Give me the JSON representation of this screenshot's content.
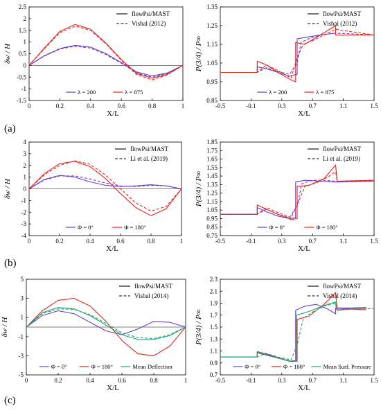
{
  "panel_labels": [
    "(a)",
    "(b)",
    "(c)"
  ],
  "chart_data": [
    {
      "type": "line",
      "panel": "a-left",
      "xlabel": "X/L",
      "ylabel": "δw / H",
      "xlim": [
        0,
        1
      ],
      "ylim": [
        -1.5,
        2.5
      ],
      "xticks": [
        "0",
        "0.2",
        "0.4",
        "0.6",
        "0.8",
        "1"
      ],
      "yticks": [
        "-1.5",
        "-1",
        "-0.5",
        "0",
        "0.5",
        "1",
        "1.5",
        "2",
        "2.5"
      ],
      "legend_top": [
        "flowPsi/MAST",
        "Visbal (2012)"
      ],
      "legend_bottom": [
        "λ = 200",
        "λ = 875"
      ],
      "grid": false,
      "series": [
        {
          "name": "λ = 200",
          "source": "flowPsi/MAST",
          "color": "#6a3dc7",
          "dash": false,
          "x": [
            0,
            0.1,
            0.2,
            0.3,
            0.4,
            0.5,
            0.6,
            0.7,
            0.8,
            0.9,
            1
          ],
          "y": [
            0,
            0.42,
            0.72,
            0.86,
            0.78,
            0.5,
            0.12,
            -0.28,
            -0.45,
            -0.32,
            0
          ]
        },
        {
          "name": "λ = 200",
          "source": "Visbal (2012)",
          "color": "#6a3dc7",
          "dash": true,
          "x": [
            0,
            0.1,
            0.2,
            0.3,
            0.4,
            0.5,
            0.6,
            0.7,
            0.8,
            0.9,
            1
          ],
          "y": [
            0,
            0.4,
            0.7,
            0.82,
            0.74,
            0.46,
            0.09,
            -0.32,
            -0.5,
            -0.35,
            0
          ]
        },
        {
          "name": "λ = 875",
          "source": "flowPsi/MAST",
          "color": "#e8231c",
          "dash": false,
          "x": [
            0,
            0.1,
            0.2,
            0.3,
            0.4,
            0.5,
            0.6,
            0.7,
            0.8,
            0.9,
            1
          ],
          "y": [
            0,
            0.75,
            1.45,
            1.75,
            1.55,
            0.95,
            0.25,
            -0.35,
            -0.55,
            -0.38,
            0
          ]
        },
        {
          "name": "λ = 875",
          "source": "Visbal (2012)",
          "color": "#e8231c",
          "dash": true,
          "x": [
            0,
            0.1,
            0.2,
            0.3,
            0.4,
            0.5,
            0.6,
            0.7,
            0.8,
            0.9,
            1
          ],
          "y": [
            0,
            0.72,
            1.4,
            1.68,
            1.5,
            0.92,
            0.22,
            -0.4,
            -0.62,
            -0.4,
            0
          ]
        }
      ]
    },
    {
      "type": "line",
      "panel": "a-right",
      "xlabel": "X/L",
      "ylabel": "P(3/4) / P∞",
      "xlim": [
        -0.5,
        1.5
      ],
      "ylim": [
        0.85,
        1.35
      ],
      "xticks": [
        "-0.5",
        "-0.1",
        "0.3",
        "0.7",
        "1.1",
        "1.5"
      ],
      "yticks": [
        "0.85",
        "0.95",
        "1.05",
        "1.15",
        "1.25",
        "1.35"
      ],
      "legend_top": [
        "flowPsi/MAST",
        "Visbal (2012)"
      ],
      "legend_bottom": [
        "λ = 200",
        "λ = 875"
      ],
      "grid": false,
      "series": [
        {
          "name": "λ = 200",
          "source": "flowPsi/MAST",
          "color": "#6a3dc7",
          "dash": false,
          "x": [
            -0.5,
            -0.02,
            -0.02,
            0.1,
            0.25,
            0.4,
            0.5,
            0.5,
            0.65,
            0.8,
            1.0,
            1.0,
            1.5
          ],
          "y": [
            1.0,
            1.0,
            1.03,
            1.02,
            1.0,
            0.98,
            0.99,
            1.18,
            1.19,
            1.2,
            1.21,
            1.2,
            1.2
          ]
        },
        {
          "name": "λ = 200",
          "source": "Visbal (2012)",
          "color": "#6a3dc7",
          "dash": true,
          "x": [
            -0.5,
            -0.02,
            0.1,
            0.25,
            0.4,
            0.5,
            0.55,
            0.65,
            0.8,
            1.0,
            1.5
          ],
          "y": [
            1.0,
            1.0,
            1.025,
            1.005,
            0.99,
            1.05,
            1.16,
            1.18,
            1.2,
            1.21,
            1.2
          ]
        },
        {
          "name": "λ = 875",
          "source": "flowPsi/MAST",
          "color": "#e8231c",
          "dash": false,
          "x": [
            -0.5,
            -0.02,
            -0.02,
            0.1,
            0.25,
            0.42,
            0.48,
            0.48,
            0.6,
            0.8,
            1.0,
            1.0,
            1.5
          ],
          "y": [
            1.0,
            1.0,
            1.06,
            1.04,
            1.0,
            0.96,
            0.95,
            1.16,
            1.15,
            1.2,
            1.25,
            1.2,
            1.2
          ]
        },
        {
          "name": "λ = 875",
          "source": "Visbal (2012)",
          "color": "#e8231c",
          "dash": true,
          "x": [
            -0.5,
            -0.02,
            0.1,
            0.25,
            0.42,
            0.5,
            0.58,
            0.7,
            0.85,
            1.0,
            1.5
          ],
          "y": [
            1.0,
            1.0,
            1.04,
            1.01,
            0.97,
            1.08,
            1.15,
            1.17,
            1.2,
            1.23,
            1.2
          ]
        }
      ]
    },
    {
      "type": "line",
      "panel": "b-left",
      "xlabel": "X/L",
      "ylabel": "δw / H",
      "xlim": [
        0,
        1
      ],
      "ylim": [
        -4,
        4
      ],
      "xticks": [
        "0",
        "0.2",
        "0.4",
        "0.6",
        "0.8",
        "1"
      ],
      "yticks": [
        "-4",
        "-3",
        "-2",
        "-1",
        "0",
        "1",
        "2",
        "3",
        "4"
      ],
      "legend_top": [
        "flowPsi/MAST",
        "Li et al. (2019)"
      ],
      "legend_bottom": [
        "Φ = 0°",
        "Φ = 180°"
      ],
      "grid": false,
      "series": [
        {
          "name": "Φ = 0°",
          "source": "flowPsi/MAST",
          "color": "#6a3dc7",
          "dash": false,
          "x": [
            0,
            0.1,
            0.2,
            0.3,
            0.4,
            0.5,
            0.6,
            0.7,
            0.8,
            0.9,
            1
          ],
          "y": [
            0,
            0.8,
            1.15,
            1.0,
            0.6,
            0.3,
            0.2,
            0.25,
            0.35,
            0.25,
            0
          ]
        },
        {
          "name": "Φ = 0°",
          "source": "Li et al. (2019)",
          "color": "#6a3dc7",
          "dash": true,
          "x": [
            0,
            0.1,
            0.2,
            0.3,
            0.4,
            0.5,
            0.6,
            0.7,
            0.8,
            0.9,
            1
          ],
          "y": [
            0,
            0.75,
            1.1,
            1.1,
            0.85,
            0.5,
            0.25,
            0.2,
            0.3,
            0.25,
            0
          ]
        },
        {
          "name": "Φ = 180°",
          "source": "flowPsi/MAST",
          "color": "#e8231c",
          "dash": false,
          "x": [
            0,
            0.1,
            0.2,
            0.3,
            0.4,
            0.5,
            0.6,
            0.7,
            0.8,
            0.9,
            1
          ],
          "y": [
            0,
            1.3,
            2.15,
            2.35,
            1.9,
            0.9,
            -0.4,
            -1.6,
            -2.3,
            -1.7,
            0
          ]
        },
        {
          "name": "Φ = 180°",
          "source": "Li et al. (2019)",
          "color": "#e8231c",
          "dash": true,
          "x": [
            0,
            0.1,
            0.2,
            0.3,
            0.4,
            0.5,
            0.6,
            0.7,
            0.8,
            0.9,
            1
          ],
          "y": [
            0,
            1.2,
            2.0,
            2.4,
            2.1,
            1.2,
            0.0,
            -1.2,
            -1.9,
            -1.5,
            0
          ]
        }
      ]
    },
    {
      "type": "line",
      "panel": "b-right",
      "xlabel": "X/L",
      "ylabel": "P(3/4) / P∞",
      "xlim": [
        -0.5,
        1.5
      ],
      "ylim": [
        0.75,
        1.85
      ],
      "xticks": [
        "-0.5",
        "-0.1",
        "0.3",
        "0.7",
        "1.1",
        "1.5"
      ],
      "yticks": [
        "0.75",
        "0.85",
        "0.95",
        "1.05",
        "1.15",
        "1.25",
        "1.35",
        "1.45",
        "1.55",
        "1.65",
        "1.75",
        "1.85"
      ],
      "legend_top": [
        "flowPsi/MAST",
        "Li et al. (2019)"
      ],
      "legend_bottom": [
        "Φ = 0°",
        "Φ = 180°"
      ],
      "grid": false,
      "series": [
        {
          "name": "Φ = 0°",
          "source": "flowPsi/MAST",
          "color": "#6a3dc7",
          "dash": false,
          "x": [
            -0.5,
            -0.02,
            -0.02,
            0.1,
            0.25,
            0.4,
            0.48,
            0.48,
            0.6,
            0.8,
            1.0,
            1.5
          ],
          "y": [
            1.0,
            1.0,
            1.08,
            1.03,
            0.98,
            0.95,
            0.96,
            1.38,
            1.4,
            1.39,
            1.38,
            1.39
          ]
        },
        {
          "name": "Φ = 0°",
          "source": "Li et al. (2019)",
          "color": "#6a3dc7",
          "dash": true,
          "x": [
            -0.5,
            -0.02,
            0.1,
            0.25,
            0.4,
            0.5,
            0.56,
            0.7,
            0.85,
            1.0,
            1.5
          ],
          "y": [
            1.0,
            1.0,
            1.06,
            1.0,
            0.96,
            1.1,
            1.36,
            1.4,
            1.4,
            1.39,
            1.39
          ]
        },
        {
          "name": "Φ = 180°",
          "source": "flowPsi/MAST",
          "color": "#e8231c",
          "dash": false,
          "x": [
            -0.5,
            -0.02,
            -0.02,
            0.1,
            0.25,
            0.42,
            0.5,
            0.5,
            0.65,
            0.85,
            1.0,
            1.02,
            1.5
          ],
          "y": [
            1.0,
            1.0,
            1.11,
            1.06,
            1.0,
            0.94,
            0.95,
            1.33,
            1.34,
            1.42,
            1.58,
            1.39,
            1.4
          ]
        },
        {
          "name": "Φ = 180°",
          "source": "Li et al. (2019)",
          "color": "#e8231c",
          "dash": true,
          "x": [
            -0.5,
            -0.02,
            0.1,
            0.25,
            0.42,
            0.52,
            0.6,
            0.75,
            0.9,
            1.0,
            1.02,
            1.5
          ],
          "y": [
            1.0,
            1.0,
            1.08,
            1.02,
            0.96,
            1.15,
            1.33,
            1.37,
            1.44,
            1.5,
            1.39,
            1.4
          ]
        }
      ]
    },
    {
      "type": "line",
      "panel": "c-left",
      "xlabel": "X/L",
      "ylabel": "δw / H",
      "xlim": [
        0,
        1
      ],
      "ylim": [
        -5,
        5
      ],
      "xticks": [
        "0",
        "0.2",
        "0.4",
        "0.6",
        "0.8",
        "1"
      ],
      "yticks": [
        "-5",
        "-3",
        "-1",
        "1",
        "3",
        "5"
      ],
      "legend_top": [
        "flowPsi/MAST",
        "Visbal (2014)"
      ],
      "legend_bottom": [
        "Φ = 0°",
        "Φ = 180°",
        "Mean Deflection"
      ],
      "grid": false,
      "series": [
        {
          "name": "Φ = 0°",
          "source": "flowPsi/MAST",
          "color": "#6a3dc7",
          "dash": false,
          "x": [
            0,
            0.1,
            0.2,
            0.3,
            0.4,
            0.5,
            0.6,
            0.7,
            0.8,
            0.9,
            1
          ],
          "y": [
            0,
            1.2,
            1.7,
            1.4,
            0.5,
            -0.4,
            -0.8,
            -0.2,
            0.6,
            0.5,
            0
          ]
        },
        {
          "name": "Φ = 180°",
          "source": "flowPsi/MAST",
          "color": "#e8231c",
          "dash": false,
          "x": [
            0,
            0.1,
            0.2,
            0.3,
            0.4,
            0.5,
            0.6,
            0.7,
            0.8,
            0.9,
            1
          ],
          "y": [
            0,
            1.7,
            2.8,
            3.0,
            2.2,
            0.6,
            -1.4,
            -2.8,
            -3.0,
            -2.0,
            0
          ]
        },
        {
          "name": "Mean Deflection",
          "source": "flowPsi/MAST",
          "color": "#1aa66a",
          "dash": false,
          "x": [
            0,
            0.1,
            0.2,
            0.3,
            0.4,
            0.5,
            0.6,
            0.7,
            0.8,
            0.9,
            1
          ],
          "y": [
            0,
            1.5,
            2.05,
            1.9,
            1.2,
            0.2,
            -0.8,
            -1.3,
            -1.3,
            -0.9,
            0
          ]
        },
        {
          "name": "Mean Deflection",
          "source": "Visbal (2014)",
          "color": "#1aa66a",
          "dash": true,
          "x": [
            0,
            0.1,
            0.2,
            0.3,
            0.4,
            0.5,
            0.6,
            0.7,
            0.8,
            0.9,
            1
          ],
          "y": [
            0,
            1.4,
            1.9,
            1.85,
            1.3,
            0.4,
            -0.6,
            -1.1,
            -1.2,
            -0.8,
            0
          ]
        }
      ]
    },
    {
      "type": "line",
      "panel": "c-right",
      "xlabel": "X/L",
      "ylabel": "P(3/4) / P∞",
      "xlim": [
        -0.5,
        1.5
      ],
      "ylim": [
        0.7,
        2.3
      ],
      "xticks": [
        "-0.5",
        "-0.1",
        "0.3",
        "0.7",
        "1.1",
        "1.5"
      ],
      "yticks": [
        "0.7",
        "0.9",
        "1.1",
        "1.3",
        "1.5",
        "1.7",
        "1.9",
        "2.1",
        "2.3"
      ],
      "legend_top": [
        "flowPsi/MAST",
        "Visbal (2014)"
      ],
      "legend_bottom": [
        "Φ = 0°",
        "Φ = 180°",
        "Mean Surf. Pressure"
      ],
      "grid": false,
      "series": [
        {
          "name": "Φ = 0°",
          "source": "flowPsi/MAST",
          "color": "#6a3dc7",
          "dash": false,
          "x": [
            -0.5,
            -0.02,
            -0.02,
            0.1,
            0.25,
            0.4,
            0.48,
            0.48,
            0.6,
            0.75,
            0.9,
            1.0,
            1.0,
            1.2,
            1.4
          ],
          "y": [
            1.0,
            1.0,
            1.07,
            1.03,
            0.98,
            0.93,
            0.94,
            1.78,
            1.85,
            1.88,
            1.8,
            1.72,
            1.82,
            1.82,
            1.83
          ]
        },
        {
          "name": "Φ = 180°",
          "source": "flowPsi/MAST",
          "color": "#e8231c",
          "dash": false,
          "x": [
            -0.5,
            -0.02,
            -0.02,
            0.1,
            0.25,
            0.42,
            0.5,
            0.5,
            0.65,
            0.85,
            1.0,
            1.02,
            1.2,
            1.4
          ],
          "y": [
            1.0,
            1.0,
            1.09,
            1.05,
            0.99,
            0.92,
            0.93,
            1.63,
            1.68,
            1.88,
            2.08,
            1.78,
            1.8,
            1.79
          ]
        },
        {
          "name": "Mean Surf. Pressure",
          "source": "flowPsi/MAST",
          "color": "#1aa66a",
          "dash": false,
          "x": [
            -0.5,
            -0.02,
            -0.02,
            0.1,
            0.25,
            0.42,
            0.49,
            0.49,
            0.65,
            0.85,
            1.0,
            1.01,
            1.2,
            1.4
          ],
          "y": [
            1.0,
            1.0,
            1.08,
            1.04,
            0.985,
            0.93,
            0.935,
            1.7,
            1.76,
            1.86,
            1.92,
            1.8,
            1.81,
            1.81
          ]
        },
        {
          "name": "Mean Surf. Pressure",
          "source": "Visbal (2014)",
          "color": "#1aa66a",
          "dash": true,
          "x": [
            -0.5,
            -0.02,
            0.1,
            0.25,
            0.42,
            0.5,
            0.58,
            0.7,
            0.85,
            1.0,
            1.01,
            1.2,
            1.5
          ],
          "y": [
            1.0,
            1.0,
            1.06,
            1.0,
            0.95,
            1.2,
            1.65,
            1.75,
            1.85,
            1.9,
            1.8,
            1.8,
            1.81
          ]
        }
      ]
    }
  ]
}
